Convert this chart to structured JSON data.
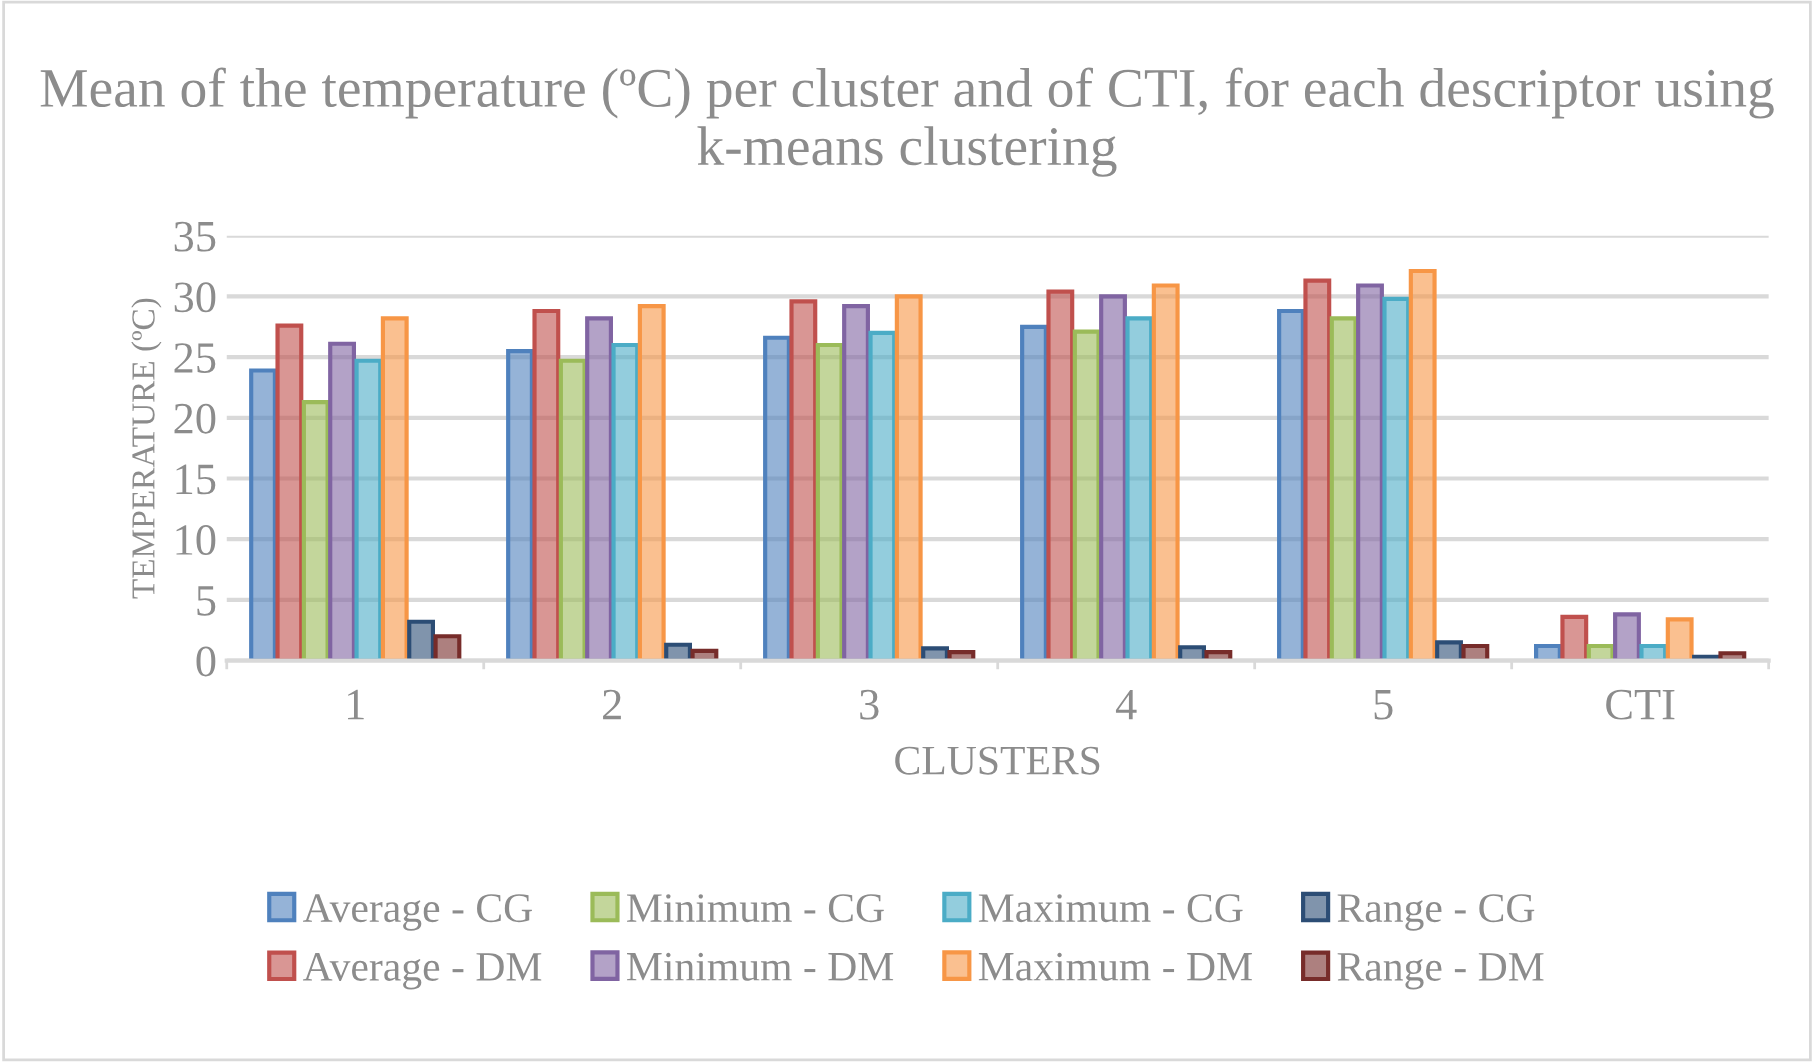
{
  "chart_data": {
    "type": "bar",
    "title": "Mean of the temperature (ºC) per cluster and of CTI, for each descriptor using k-means clustering",
    "xlabel": "CLUSTERS",
    "ylabel": "TEMPERATURE (ºC)",
    "categories": [
      "1",
      "2",
      "3",
      "4",
      "5",
      "CTI"
    ],
    "series": [
      {
        "name": "Average - CG",
        "color": "#4f81bd",
        "values": [
          23.9,
          25.5,
          26.6,
          27.5,
          28.8,
          1.2
        ]
      },
      {
        "name": "Average - DM",
        "color": "#c0504d",
        "values": [
          27.6,
          28.8,
          29.6,
          30.4,
          31.3,
          3.6
        ]
      },
      {
        "name": "Minimum - CG",
        "color": "#9bbb59",
        "values": [
          21.3,
          24.7,
          26.0,
          27.1,
          28.2,
          1.2
        ]
      },
      {
        "name": "Minimum - DM",
        "color": "#8064a2",
        "values": [
          26.1,
          28.2,
          29.2,
          30.0,
          30.9,
          3.8
        ]
      },
      {
        "name": "Maximum - CG",
        "color": "#4bacc6",
        "values": [
          24.7,
          26.0,
          27.0,
          28.2,
          29.8,
          1.2
        ]
      },
      {
        "name": "Maximum - DM",
        "color": "#f79646",
        "values": [
          28.2,
          29.2,
          30.0,
          30.9,
          32.1,
          3.4
        ]
      },
      {
        "name": "Range - CG",
        "color": "#2c4d75",
        "values": [
          3.2,
          1.3,
          1.0,
          1.1,
          1.5,
          0.3
        ]
      },
      {
        "name": "Range - DM",
        "color": "#772c2a",
        "values": [
          2.0,
          0.8,
          0.7,
          0.7,
          1.2,
          0.6
        ]
      }
    ],
    "ylim": [
      0,
      35
    ],
    "yticks": [
      0,
      5,
      10,
      15,
      20,
      25,
      30,
      35
    ],
    "grid": "y",
    "legend": "bottom"
  }
}
